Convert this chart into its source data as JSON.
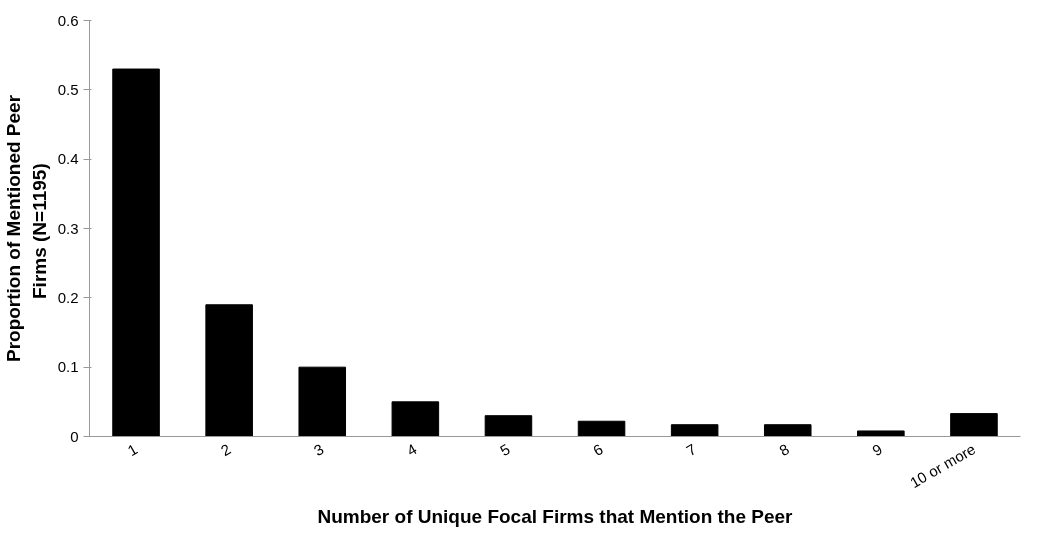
{
  "chart_data": {
    "type": "bar",
    "xlabel": "Number of Unique Focal Firms that Mention the Peer",
    "ylabel": "Proportion of Mentioned Peer\nFirms  (N=1195)",
    "categories": [
      "1",
      "2",
      "3",
      "4",
      "5",
      "6",
      "7",
      "8",
      "9",
      "10 or more"
    ],
    "values": [
      0.53,
      0.19,
      0.1,
      0.05,
      0.03,
      0.022,
      0.017,
      0.017,
      0.008,
      0.033
    ],
    "color": "#000000",
    "ylim": [
      0,
      0.6
    ],
    "yticks": [
      0,
      0.1,
      0.2,
      0.3,
      0.4,
      0.5,
      0.6
    ],
    "grid": false
  }
}
